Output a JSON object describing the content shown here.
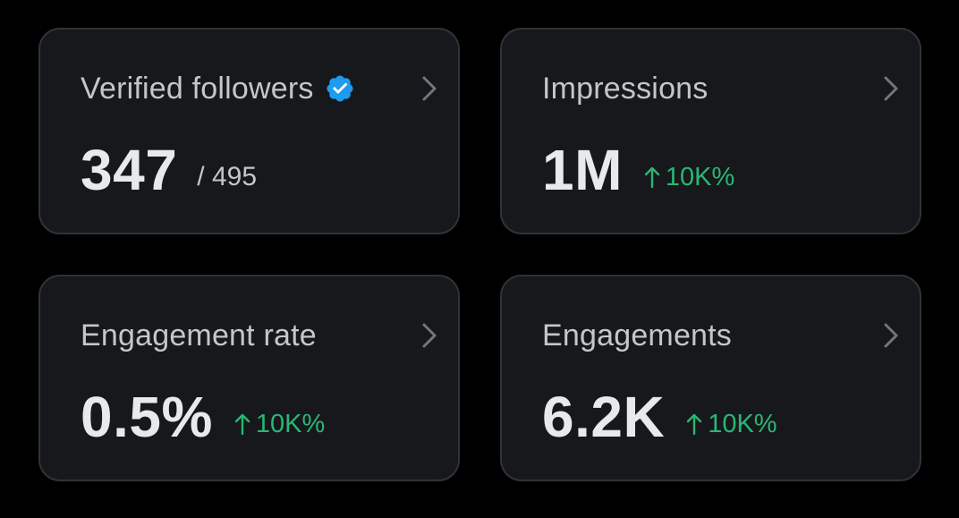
{
  "colors": {
    "background": "#000000",
    "card": "#16181c",
    "card_border": "#2f3336",
    "title_text": "#c4c7ca",
    "value_text": "#e7e9ea",
    "positive_delta": "#2bb673",
    "verified_badge": "#1d9bf0"
  },
  "cards": [
    {
      "title": "Verified followers",
      "badge_icon": "verified-badge-icon",
      "value": "347",
      "sub_value": "/ 495",
      "chevron_icon": "chevron-right-icon"
    },
    {
      "title": "Impressions",
      "value": "1M",
      "delta_icon": "arrow-up-icon",
      "delta": "10K%",
      "chevron_icon": "chevron-right-icon"
    },
    {
      "title": "Engagement rate",
      "value": "0.5%",
      "delta_icon": "arrow-up-icon",
      "delta": "10K%",
      "chevron_icon": "chevron-right-icon"
    },
    {
      "title": "Engagements",
      "value": "6.2K",
      "delta_icon": "arrow-up-icon",
      "delta": "10K%",
      "chevron_icon": "chevron-right-icon"
    }
  ]
}
